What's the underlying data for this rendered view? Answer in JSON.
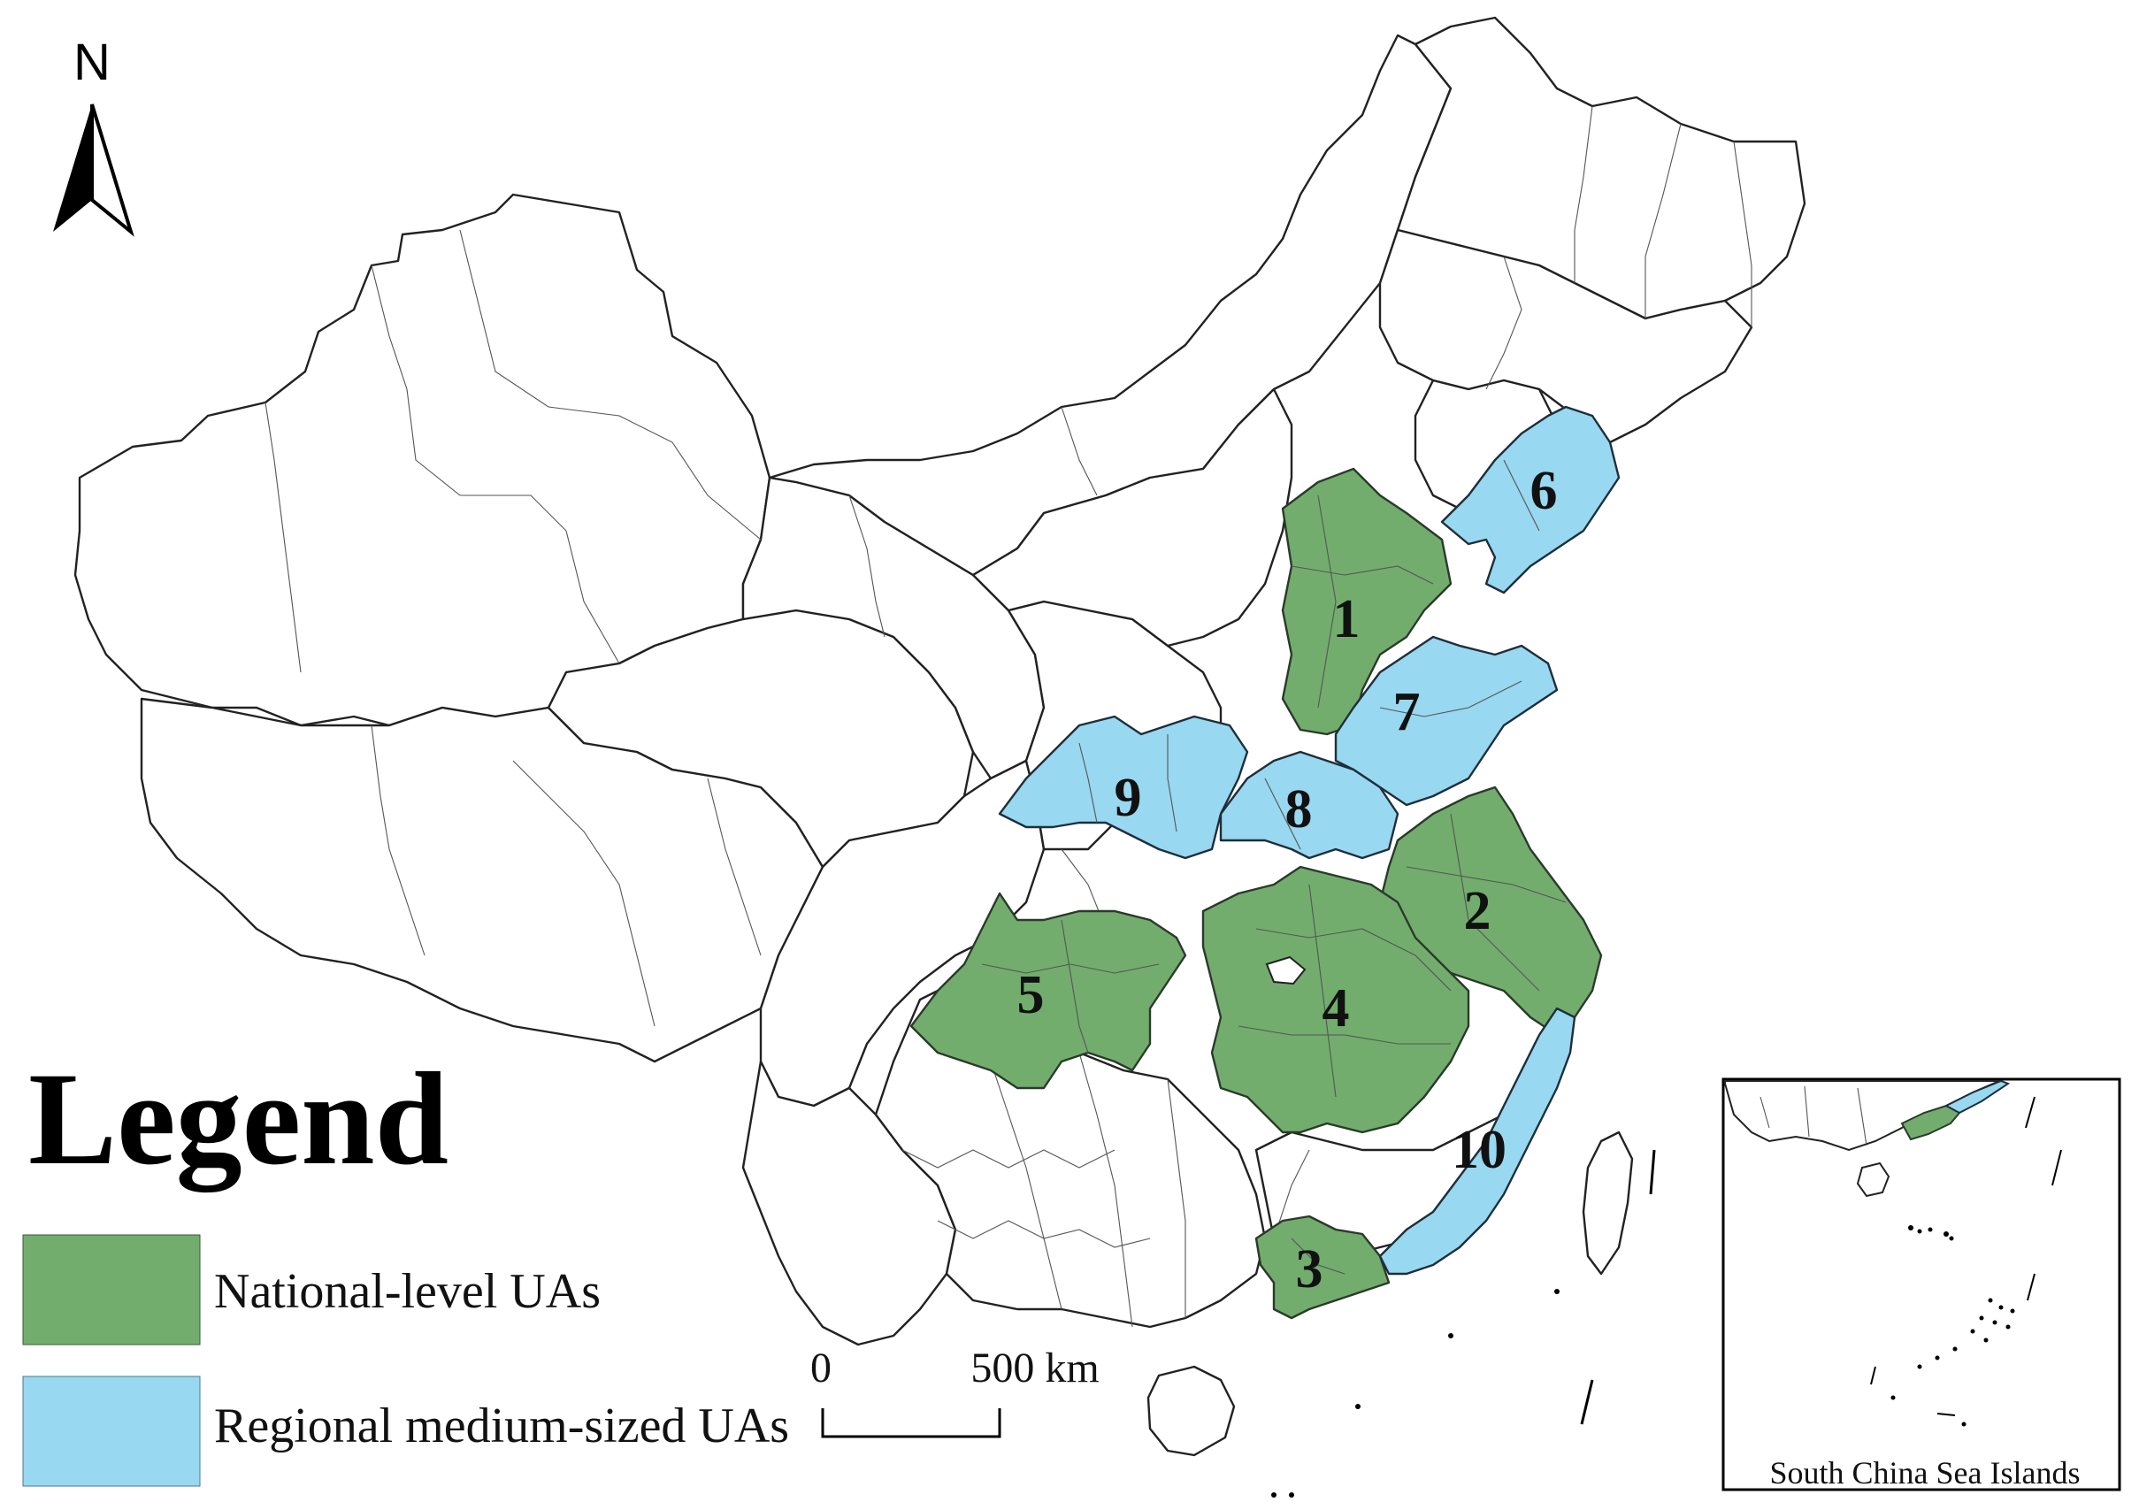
{
  "north_arrow": {
    "label": "N",
    "icon": "north-arrow-icon"
  },
  "legend": {
    "title": "Legend",
    "items": [
      {
        "label": "National-level UAs",
        "color": "#72ad6e"
      },
      {
        "label": "Regional medium-sized UAs",
        "color": "#98d8f0"
      }
    ]
  },
  "scale_bar": {
    "start_label": "0",
    "end_label": "500 km"
  },
  "inset": {
    "caption": "South China Sea Islands"
  },
  "urban_agglomerations": [
    {
      "number": "1",
      "level": "national"
    },
    {
      "number": "2",
      "level": "national"
    },
    {
      "number": "3",
      "level": "national"
    },
    {
      "number": "4",
      "level": "national"
    },
    {
      "number": "5",
      "level": "national"
    },
    {
      "number": "6",
      "level": "regional"
    },
    {
      "number": "7",
      "level": "regional"
    },
    {
      "number": "8",
      "level": "regional"
    },
    {
      "number": "9",
      "level": "regional"
    },
    {
      "number": "10",
      "level": "regional"
    }
  ],
  "colors": {
    "national": "#72ad6e",
    "regional": "#98d8f0",
    "background": "#ffffff",
    "boundary": "#222222"
  }
}
